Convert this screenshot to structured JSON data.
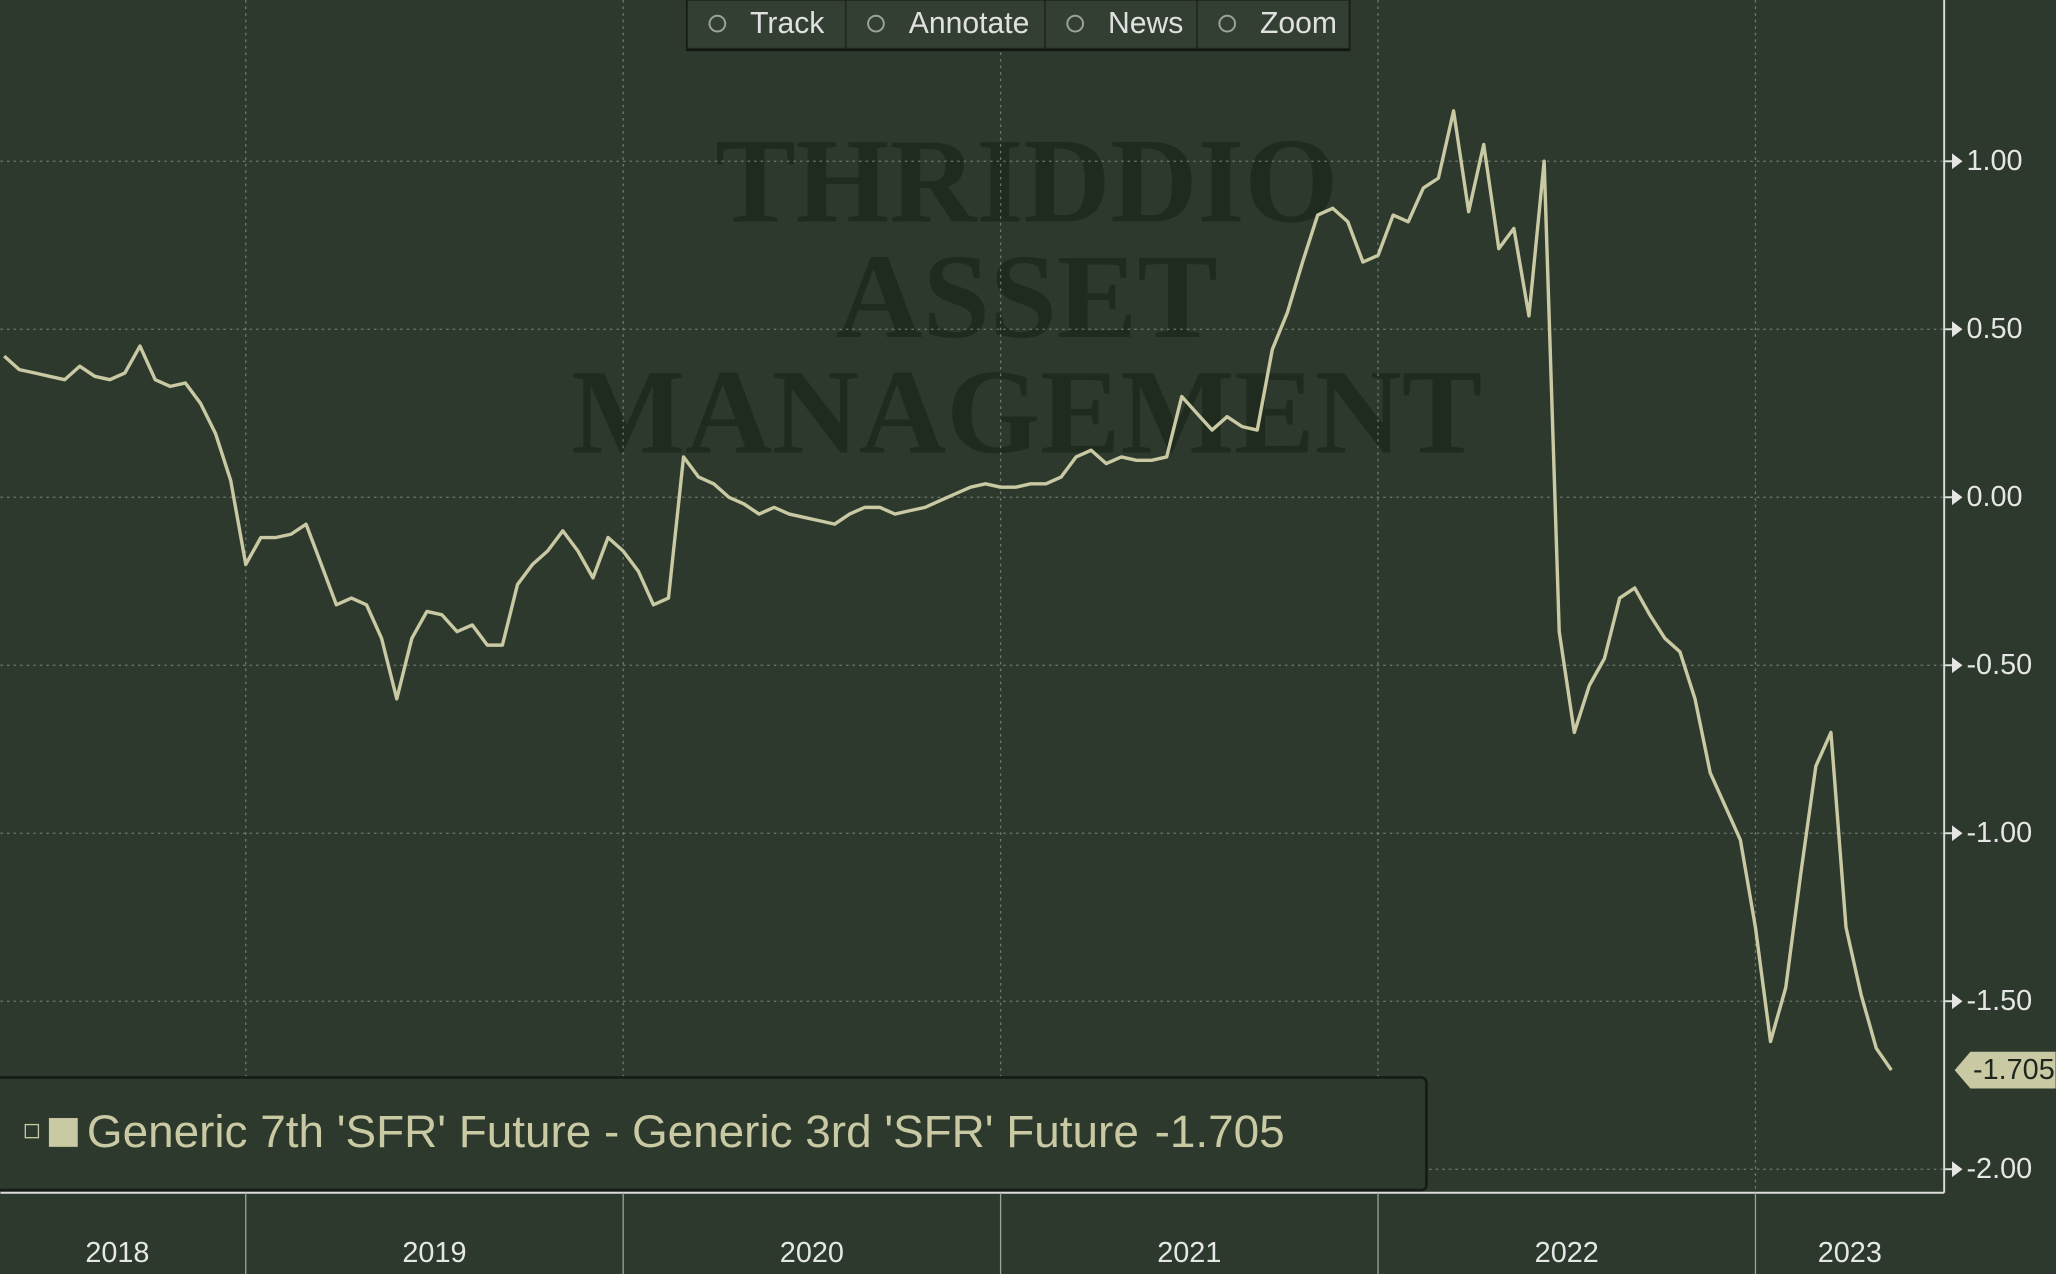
{
  "toolbar": [
    "Track",
    "Annotate",
    "News",
    "Zoom"
  ],
  "watermark": [
    "THRIDDIO",
    "ASSET",
    "MANAGEMENT"
  ],
  "chart_data": {
    "type": "line",
    "x": [
      2018.36,
      2018.4,
      2018.44,
      2018.48,
      2018.52,
      2018.56,
      2018.6,
      2018.64,
      2018.68,
      2018.72,
      2018.76,
      2018.8,
      2018.84,
      2018.88,
      2018.92,
      2018.96,
      2019,
      2019.04,
      2019.08,
      2019.12,
      2019.16,
      2019.2,
      2019.24,
      2019.28,
      2019.32,
      2019.36,
      2019.4,
      2019.44,
      2019.48,
      2019.52,
      2019.56,
      2019.6,
      2019.64,
      2019.68,
      2019.72,
      2019.76,
      2019.8,
      2019.84,
      2019.88,
      2019.92,
      2019.96,
      2020,
      2020.04,
      2020.08,
      2020.12,
      2020.16,
      2020.2,
      2020.24,
      2020.28,
      2020.32,
      2020.36,
      2020.4,
      2020.44,
      2020.48,
      2020.52,
      2020.56,
      2020.6,
      2020.64,
      2020.68,
      2020.72,
      2020.76,
      2020.8,
      2020.84,
      2020.88,
      2020.92,
      2020.96,
      2021,
      2021.04,
      2021.08,
      2021.12,
      2021.16,
      2021.2,
      2021.24,
      2021.28,
      2021.32,
      2021.36,
      2021.4,
      2021.44,
      2021.48,
      2021.52,
      2021.56,
      2021.6,
      2021.64,
      2021.68,
      2021.72,
      2021.76,
      2021.8,
      2021.84,
      2021.88,
      2021.92,
      2021.96,
      2022,
      2022.04,
      2022.08,
      2022.12,
      2022.16,
      2022.2,
      2022.24,
      2022.28,
      2022.32,
      2022.36,
      2022.4,
      2022.44,
      2022.48,
      2022.52,
      2022.56,
      2022.6,
      2022.64,
      2022.68,
      2022.72,
      2022.76,
      2022.8,
      2022.84,
      2022.88,
      2022.92,
      2022.96,
      2023,
      2023.04,
      2023.08,
      2023.12,
      2023.16,
      2023.2,
      2023.24,
      2023.28,
      2023.32,
      2023.36
    ],
    "series": [
      {
        "name": "Generic 7th 'SFR' Future - Generic 3rd 'SFR' Future",
        "color": "#c9c9a3",
        "values": [
          0.42,
          0.38,
          0.37,
          0.36,
          0.35,
          0.39,
          0.36,
          0.35,
          0.37,
          0.45,
          0.35,
          0.33,
          0.34,
          0.28,
          0.19,
          0.05,
          -0.2,
          -0.12,
          -0.12,
          -0.11,
          -0.08,
          -0.2,
          -0.32,
          -0.3,
          -0.32,
          -0.42,
          -0.6,
          -0.42,
          -0.34,
          -0.35,
          -0.4,
          -0.38,
          -0.44,
          -0.44,
          -0.26,
          -0.2,
          -0.16,
          -0.1,
          -0.16,
          -0.24,
          -0.12,
          -0.16,
          -0.22,
          -0.32,
          -0.3,
          0.12,
          0.06,
          0.04,
          0,
          -0.02,
          -0.05,
          -0.03,
          -0.05,
          -0.06,
          -0.07,
          -0.08,
          -0.05,
          -0.03,
          -0.03,
          -0.05,
          -0.04,
          -0.03,
          -0.01,
          0.01,
          0.03,
          0.04,
          0.03,
          0.03,
          0.04,
          0.04,
          0.06,
          0.12,
          0.14,
          0.1,
          0.12,
          0.11,
          0.11,
          0.12,
          0.3,
          0.25,
          0.2,
          0.24,
          0.21,
          0.2,
          0.44,
          0.55,
          0.7,
          0.84,
          0.86,
          0.82,
          0.7,
          0.72,
          0.84,
          0.82,
          0.92,
          0.95,
          1.15,
          0.85,
          1.05,
          0.74,
          0.8,
          0.54,
          1,
          -0.4,
          -0.7,
          -0.56,
          -0.48,
          -0.3,
          -0.27,
          -0.35,
          -0.42,
          -0.46,
          -0.6,
          -0.82,
          -0.92,
          -1.02,
          -1.28,
          -1.62,
          -1.46,
          -1.12,
          -0.8,
          -0.7,
          -1.28,
          -1.48,
          -1.64,
          -1.705
        ]
      }
    ],
    "xlim": [
      2018.35,
      2023.5
    ],
    "xticks": [
      {
        "value": 2018.66,
        "label": "2018"
      },
      {
        "value": 2019.5,
        "label": "2019"
      },
      {
        "value": 2020.5,
        "label": "2020"
      },
      {
        "value": 2021.5,
        "label": "2021"
      },
      {
        "value": 2022.5,
        "label": "2022"
      },
      {
        "value": 2023.25,
        "label": "2023"
      }
    ],
    "xgrid": [
      2019,
      2020,
      2021,
      2022,
      2023
    ],
    "ylim": [
      -2.07,
      1.48
    ],
    "yticks": [
      {
        "value": 1,
        "label": "1.00"
      },
      {
        "value": 0.5,
        "label": "0.50"
      },
      {
        "value": 0,
        "label": "0.00"
      },
      {
        "value": -0.5,
        "label": "-0.50"
      },
      {
        "value": -1,
        "label": "-1.00"
      },
      {
        "value": -1.5,
        "label": "-1.50"
      },
      {
        "value": -2,
        "label": "-2.00"
      }
    ],
    "grid": true,
    "legend": "bottom-left"
  }
}
